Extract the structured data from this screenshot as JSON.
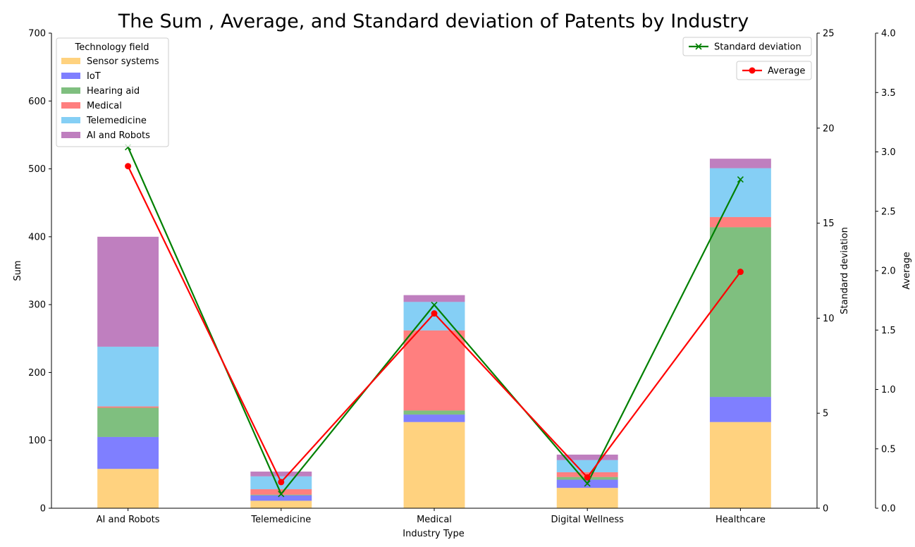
{
  "chart_data": {
    "type": "bar",
    "title": "The Sum , Average, and Standard deviation of Patents by Industry",
    "xlabel": "Industry Type",
    "ylabel": "Sum",
    "ylim": [
      0,
      700
    ],
    "yticks": [
      "0",
      "100",
      "200",
      "300",
      "400",
      "500",
      "600",
      "700"
    ],
    "categories": [
      "AI and Robots",
      "Telemedicine",
      "Medical",
      "Digital Wellness",
      "Healthcare"
    ],
    "stack_title": "Technology field",
    "legend_position": "top-left",
    "series": [
      {
        "name": "Sensor systems",
        "color": "#ffa500",
        "values": [
          58,
          11,
          127,
          30,
          127
        ]
      },
      {
        "name": "IoT",
        "color": "#0000ff",
        "values": [
          47,
          8,
          11,
          12,
          37
        ]
      },
      {
        "name": "Hearing aid",
        "color": "#008000",
        "values": [
          43,
          1,
          6,
          4,
          250
        ]
      },
      {
        "name": "Medical",
        "color": "#ff0000",
        "values": [
          2,
          8,
          118,
          7,
          15
        ]
      },
      {
        "name": "Telemedicine",
        "color": "#0ca0ec",
        "values": [
          88,
          19,
          42,
          18,
          72
        ]
      },
      {
        "name": "AI and Robots",
        "color": "#800080",
        "values": [
          162,
          7,
          10,
          8,
          14
        ]
      }
    ],
    "bar_opacity": 0.5,
    "lines": [
      {
        "name": "Standard deviation",
        "axis": "Standard deviation",
        "color": "#008000",
        "marker": "x",
        "ylim": [
          0,
          25
        ],
        "yticks": [
          "0",
          "5",
          "10",
          "15",
          "20",
          "25"
        ],
        "legend_position": "top-right",
        "values": [
          19.0,
          0.75,
          10.7,
          1.3,
          17.3
        ]
      },
      {
        "name": "Average",
        "axis": "Average",
        "color": "#ff0000",
        "marker": "o",
        "ylim": [
          0,
          4.0
        ],
        "yticks": [
          "0.0",
          "0.5",
          "1.0",
          "1.5",
          "2.0",
          "2.5",
          "3.0",
          "3.5",
          "4.0"
        ],
        "legend_position": "top-right",
        "values": [
          2.88,
          0.22,
          1.64,
          0.26,
          1.99
        ]
      }
    ]
  }
}
